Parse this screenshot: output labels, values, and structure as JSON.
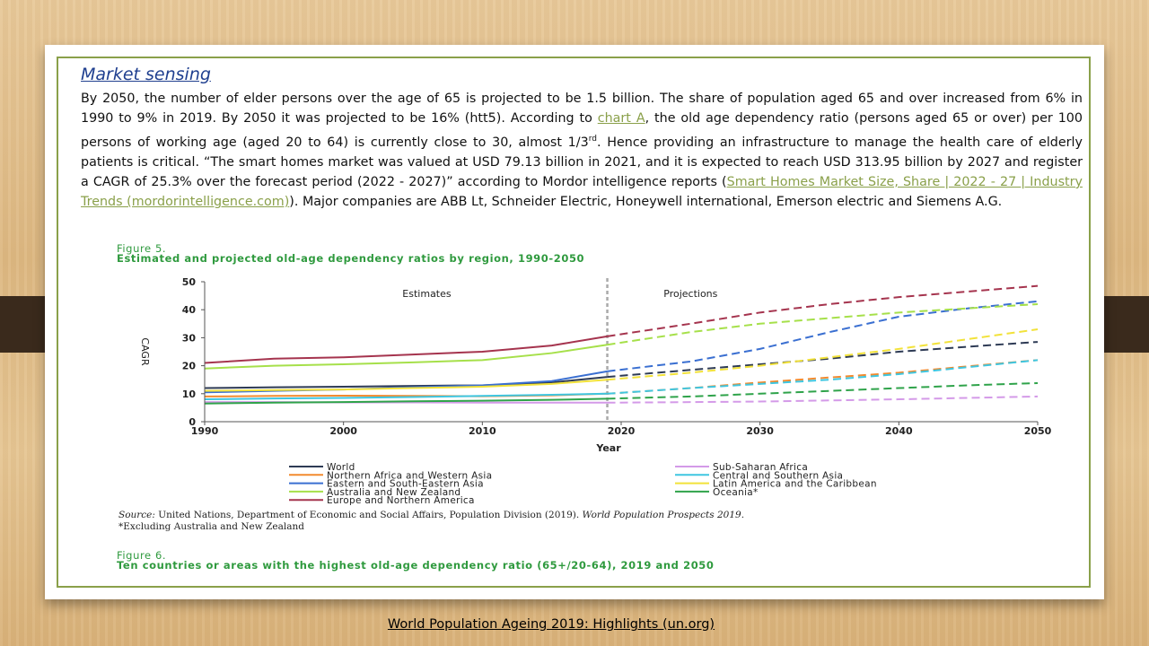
{
  "slide": {
    "heading": "Market sensing",
    "paragraph": {
      "p1": "By 2050, the number of elder persons over the age of 65 is projected to be 1.5 billion.  The share of population aged 65 and over increased from 6% in 1990 to 9% in 2019.  By 2050 it was projected to be 16%  (htt5). According to ",
      "link1": "chart A",
      "p2": ", the old age dependency ratio (persons aged 65 or over) per 100 persons of working age (aged 20 to 64) is currently close to 30, almost 1/3",
      "sup": "rd",
      "p3": ".  Hence providing an infrastructure to manage the health care of elderly patients is critical.     “The smart homes market was valued at USD 79.13 billion in 2021, and it is expected to reach USD 313.95 billion by 2027 and register a CAGR of 25.3% over the forecast period (2022 - 2027)” according to Mordor intelligence reports (",
      "link2": "Smart Homes Market Size, Share | 2022 - 27 | Industry Trends (mordorintelligence.com)",
      "p4": "). Major companies are ABB Lt, Schneider Electric, Honeywell international, Emerson electric and Siemens A.G."
    },
    "footer_link": "World Population Ageing 2019: Highlights (un.org)"
  },
  "figure5": {
    "label": "Figure 5.",
    "title": "Estimated and projected old-age dependency ratios by region, 1990-2050",
    "source_label": "Source:",
    "source_text": " United Nations, Department of Economic and Social Affairs, Population Division (2019). ",
    "source_pub": "World Population Prospects 2019.",
    "footnote": "*Excluding Australia and New Zealand"
  },
  "figure6": {
    "label": "Figure 6.",
    "title": "Ten countries or areas with the highest old-age dependency ratio (65+/20-64), 2019 and 2050"
  },
  "chart_data": {
    "type": "line",
    "ylabel": "CAGR",
    "xlabel": "Year",
    "xlim": [
      1990,
      2050
    ],
    "ylim": [
      0,
      50
    ],
    "x_ticks": [
      "1990",
      "2000",
      "2010",
      "2020",
      "2030",
      "2040",
      "2050"
    ],
    "y_ticks": [
      "0",
      "10",
      "20",
      "30",
      "40",
      "50"
    ],
    "annotations": [
      "Estimates",
      "Projections"
    ],
    "divider_x": 2019,
    "legend_placement": "bottom",
    "x": [
      1990,
      1995,
      2000,
      2005,
      2010,
      2015,
      2019,
      2025,
      2030,
      2035,
      2040,
      2045,
      2050
    ],
    "series": [
      {
        "name": "World",
        "color": "#2e3b55",
        "values": [
          12,
          12.3,
          12.5,
          12.8,
          13,
          14,
          16,
          18.5,
          20.5,
          22.5,
          25,
          26.8,
          28.5
        ]
      },
      {
        "name": "Northern Africa and Western Asia",
        "color": "#f28a2e",
        "values": [
          9,
          9.2,
          9.3,
          9.2,
          9.1,
          9.4,
          10,
          12,
          14,
          15.8,
          17.5,
          19.8,
          22
        ]
      },
      {
        "name": "Eastern and South-Eastern Asia",
        "color": "#3a6fd1",
        "values": [
          10.5,
          11,
          11.5,
          12.3,
          13,
          14.5,
          18,
          21.5,
          26,
          32,
          37.5,
          40.5,
          43
        ]
      },
      {
        "name": "Australia and New Zealand",
        "color": "#a6e04a",
        "values": [
          19,
          20,
          20.5,
          21.2,
          22,
          24.5,
          27.5,
          32,
          35,
          37,
          39,
          40.5,
          42
        ]
      },
      {
        "name": "Europe and Northern America",
        "color": "#a5344e",
        "values": [
          21,
          22.5,
          23,
          24,
          25,
          27.2,
          30.5,
          35,
          39,
          42,
          44.5,
          46.5,
          48.5
        ]
      },
      {
        "name": "Sub-Saharan Africa",
        "color": "#d49ae8",
        "values": [
          7,
          7,
          6.9,
          6.9,
          6.8,
          6.8,
          6.8,
          7,
          7.2,
          7.6,
          8,
          8.5,
          9
        ]
      },
      {
        "name": "Central and Southern Asia",
        "color": "#3fc6e0",
        "values": [
          8,
          8.3,
          8.5,
          8.8,
          9.2,
          9.6,
          10,
          12,
          13.5,
          15,
          17,
          19.5,
          22
        ]
      },
      {
        "name": "Latin America and the Caribbean",
        "color": "#f2e23a",
        "values": [
          11,
          11.3,
          11.5,
          12,
          12.5,
          13.5,
          15,
          17.5,
          20,
          23,
          26,
          29.5,
          33
        ]
      },
      {
        "name": "Oceania*",
        "color": "#2fa34a",
        "values": [
          6.5,
          6.8,
          7,
          7.3,
          7.5,
          7.8,
          8.2,
          9,
          10,
          11,
          12,
          13,
          13.8
        ]
      }
    ]
  }
}
